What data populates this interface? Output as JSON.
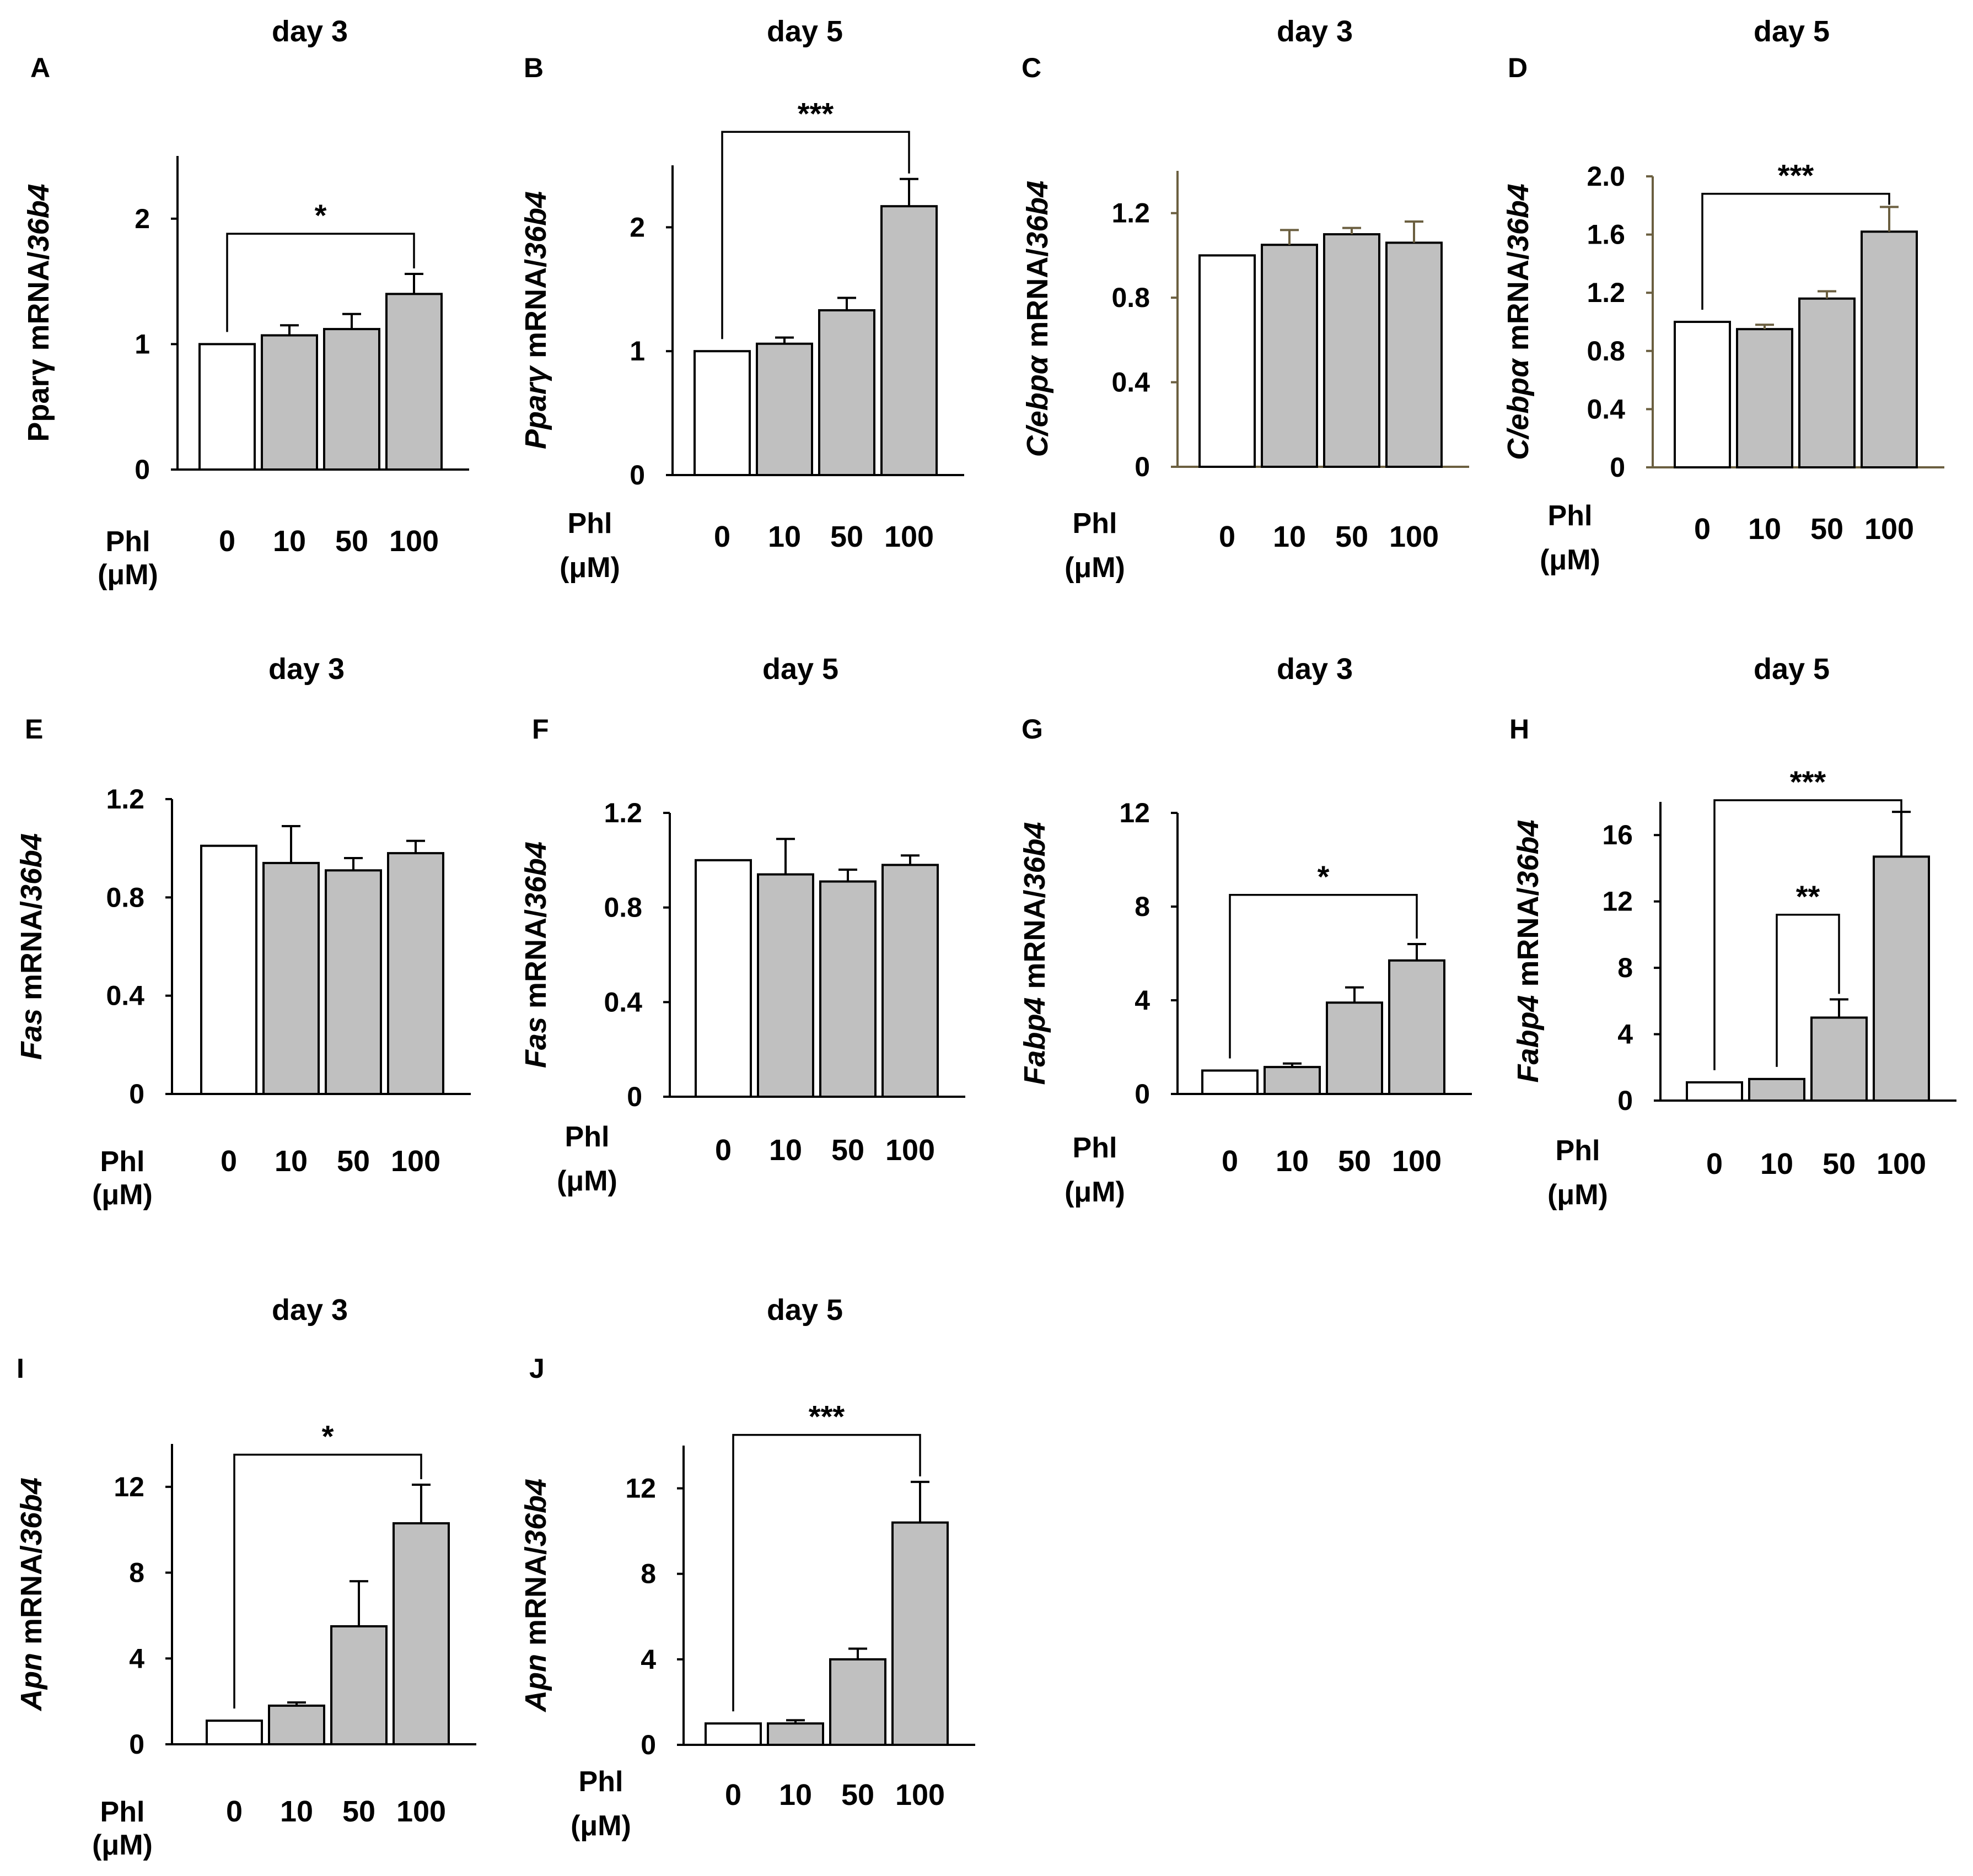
{
  "figure": {
    "x_label_line1": "Phl",
    "x_label_line2": "(μM)"
  },
  "colors": {
    "control": "#ffffff",
    "treated": "#c0c0c0",
    "stroke": "#000000",
    "axis_olive": "#6b5f40"
  },
  "chart_data": [
    {
      "panel": "A",
      "type": "bar",
      "title": "day 3",
      "ylabel": {
        "gene": "Pparγ",
        "gene_italic": false,
        "mid": " mRNA/",
        "ref": "36b4"
      },
      "categories": [
        "0",
        "10",
        "50",
        "100"
      ],
      "values": [
        1.0,
        1.07,
        1.12,
        1.4
      ],
      "errors": [
        0,
        0.08,
        0.12,
        0.16
      ],
      "ylim": [
        0,
        2.5
      ],
      "yticks": [
        0,
        1,
        2
      ],
      "ytick_labels": [
        "0",
        "1",
        "2"
      ],
      "sig": [
        {
          "from": 0,
          "to": 3,
          "label": "*",
          "level": 1.88
        }
      ]
    },
    {
      "panel": "B",
      "type": "bar",
      "title": "day 5",
      "ylabel": {
        "gene": "Pparγ",
        "gene_italic": true,
        "mid": " mRNA/",
        "ref": "36b4"
      },
      "categories": [
        "0",
        "10",
        "50",
        "100"
      ],
      "values": [
        1.0,
        1.06,
        1.33,
        2.17
      ],
      "errors": [
        0,
        0.05,
        0.1,
        0.22
      ],
      "ylim": [
        0,
        2.5
      ],
      "yticks": [
        0,
        1,
        2
      ],
      "ytick_labels": [
        "0",
        "1",
        "2"
      ],
      "sig": [
        {
          "from": 0,
          "to": 3,
          "label": "***",
          "level": 2.77
        }
      ]
    },
    {
      "panel": "C",
      "type": "bar",
      "title": "day 3",
      "ylabel": {
        "gene": "C/ebpα",
        "gene_italic": true,
        "mid": " mRNA/",
        "ref": "36b4"
      },
      "categories": [
        "0",
        "10",
        "50",
        "100"
      ],
      "values": [
        1.0,
        1.05,
        1.1,
        1.06
      ],
      "errors": [
        0,
        0.07,
        0.03,
        0.1
      ],
      "ylim": [
        0,
        1.4
      ],
      "yticks": [
        0,
        0.4,
        0.8,
        1.2
      ],
      "ytick_labels": [
        "0",
        "0.4",
        "0.8",
        "1.2"
      ],
      "axis_color": "olive",
      "sig": []
    },
    {
      "panel": "D",
      "type": "bar",
      "title": "day 5",
      "ylabel": {
        "gene": "C/ebpα",
        "gene_italic": true,
        "mid": " mRNA/",
        "ref": "36b4"
      },
      "categories": [
        "0",
        "10",
        "50",
        "100"
      ],
      "values": [
        1.0,
        0.95,
        1.16,
        1.62
      ],
      "errors": [
        0,
        0.03,
        0.05,
        0.17
      ],
      "ylim": [
        0,
        2.0
      ],
      "yticks": [
        0,
        0.4,
        0.8,
        1.2,
        1.6,
        2.0
      ],
      "ytick_labels": [
        "0",
        "0.4",
        "0.8",
        "1.2",
        "1.6",
        "2.0"
      ],
      "axis_color": "olive",
      "sig": [
        {
          "from": 0,
          "to": 3,
          "label": "***",
          "level": 1.88
        }
      ]
    },
    {
      "panel": "E",
      "type": "bar",
      "title": "day 3",
      "ylabel": {
        "gene": "Fas",
        "gene_italic": true,
        "mid": " mRNA/",
        "ref": "36b4"
      },
      "categories": [
        "0",
        "10",
        "50",
        "100"
      ],
      "values": [
        1.01,
        0.94,
        0.91,
        0.98
      ],
      "errors": [
        0,
        0.15,
        0.05,
        0.05
      ],
      "ylim": [
        0,
        1.2
      ],
      "yticks": [
        0,
        0.4,
        0.8,
        1.2
      ],
      "ytick_labels": [
        "0",
        "0.4",
        "0.8",
        "1.2"
      ],
      "sig": []
    },
    {
      "panel": "F",
      "type": "bar",
      "title": "day 5",
      "ylabel": {
        "gene": "Fas",
        "gene_italic": true,
        "mid": " mRNA/",
        "ref": "36b4"
      },
      "categories": [
        "0",
        "10",
        "50",
        "100"
      ],
      "values": [
        1.0,
        0.94,
        0.91,
        0.98
      ],
      "errors": [
        0,
        0.15,
        0.05,
        0.04
      ],
      "ylim": [
        0,
        1.2
      ],
      "yticks": [
        0,
        0.4,
        0.8,
        1.2
      ],
      "ytick_labels": [
        "0",
        "0.4",
        "0.8",
        "1.2"
      ],
      "sig": []
    },
    {
      "panel": "G",
      "type": "bar",
      "title": "day 3",
      "ylabel": {
        "gene": "Fabp4",
        "gene_italic": true,
        "mid": " mRNA/",
        "ref": "36b4"
      },
      "categories": [
        "0",
        "10",
        "50",
        "100"
      ],
      "values": [
        1.0,
        1.15,
        3.9,
        5.7
      ],
      "errors": [
        0,
        0.15,
        0.65,
        0.7
      ],
      "ylim": [
        0,
        12
      ],
      "yticks": [
        0,
        4,
        8,
        12
      ],
      "ytick_labels": [
        "0",
        "4",
        "8",
        "12"
      ],
      "sig": [
        {
          "from": 0,
          "to": 3,
          "label": "*",
          "level": 8.5
        }
      ]
    },
    {
      "panel": "H",
      "type": "bar",
      "title": "day 5",
      "ylabel": {
        "gene": "Fabp4",
        "gene_italic": true,
        "mid": " mRNA/",
        "ref": "36b4"
      },
      "categories": [
        "0",
        "10",
        "50",
        "100"
      ],
      "values": [
        1.1,
        1.3,
        5.0,
        14.7
      ],
      "errors": [
        0,
        0,
        1.1,
        2.7
      ],
      "ylim": [
        0,
        18
      ],
      "yticks": [
        0,
        4,
        8,
        12,
        16
      ],
      "ytick_labels": [
        "0",
        "4",
        "8",
        "12",
        "16"
      ],
      "sig": [
        {
          "from": 0,
          "to": 3,
          "label": "***",
          "level": 18.1
        },
        {
          "from": 1,
          "to": 2,
          "label": "**",
          "level": 11.2
        }
      ]
    },
    {
      "panel": "I",
      "type": "bar",
      "title": "day 3",
      "ylabel": {
        "gene": "Apn",
        "gene_italic": true,
        "mid": " mRNA/",
        "ref": "36b4"
      },
      "categories": [
        "0",
        "10",
        "50",
        "100"
      ],
      "values": [
        1.1,
        1.8,
        5.5,
        10.3
      ],
      "errors": [
        0,
        0.15,
        2.1,
        1.8
      ],
      "ylim": [
        0,
        14
      ],
      "yticks": [
        0,
        4,
        8,
        12
      ],
      "ytick_labels": [
        "0",
        "4",
        "8",
        "12"
      ],
      "sig": [
        {
          "from": 0,
          "to": 3,
          "label": "*",
          "level": 13.5
        }
      ]
    },
    {
      "panel": "J",
      "type": "bar",
      "title": "day 5",
      "ylabel": {
        "gene": "Apn",
        "gene_italic": true,
        "mid": " mRNA/",
        "ref": "36b4"
      },
      "categories": [
        "0",
        "10",
        "50",
        "100"
      ],
      "values": [
        1.0,
        1.0,
        4.0,
        10.4
      ],
      "errors": [
        0,
        0.15,
        0.5,
        1.9
      ],
      "ylim": [
        0,
        14
      ],
      "yticks": [
        0,
        4,
        8,
        12
      ],
      "ytick_labels": [
        "0",
        "4",
        "8",
        "12"
      ],
      "sig": [
        {
          "from": 0,
          "to": 3,
          "label": "***",
          "level": 14.5
        }
      ]
    }
  ]
}
